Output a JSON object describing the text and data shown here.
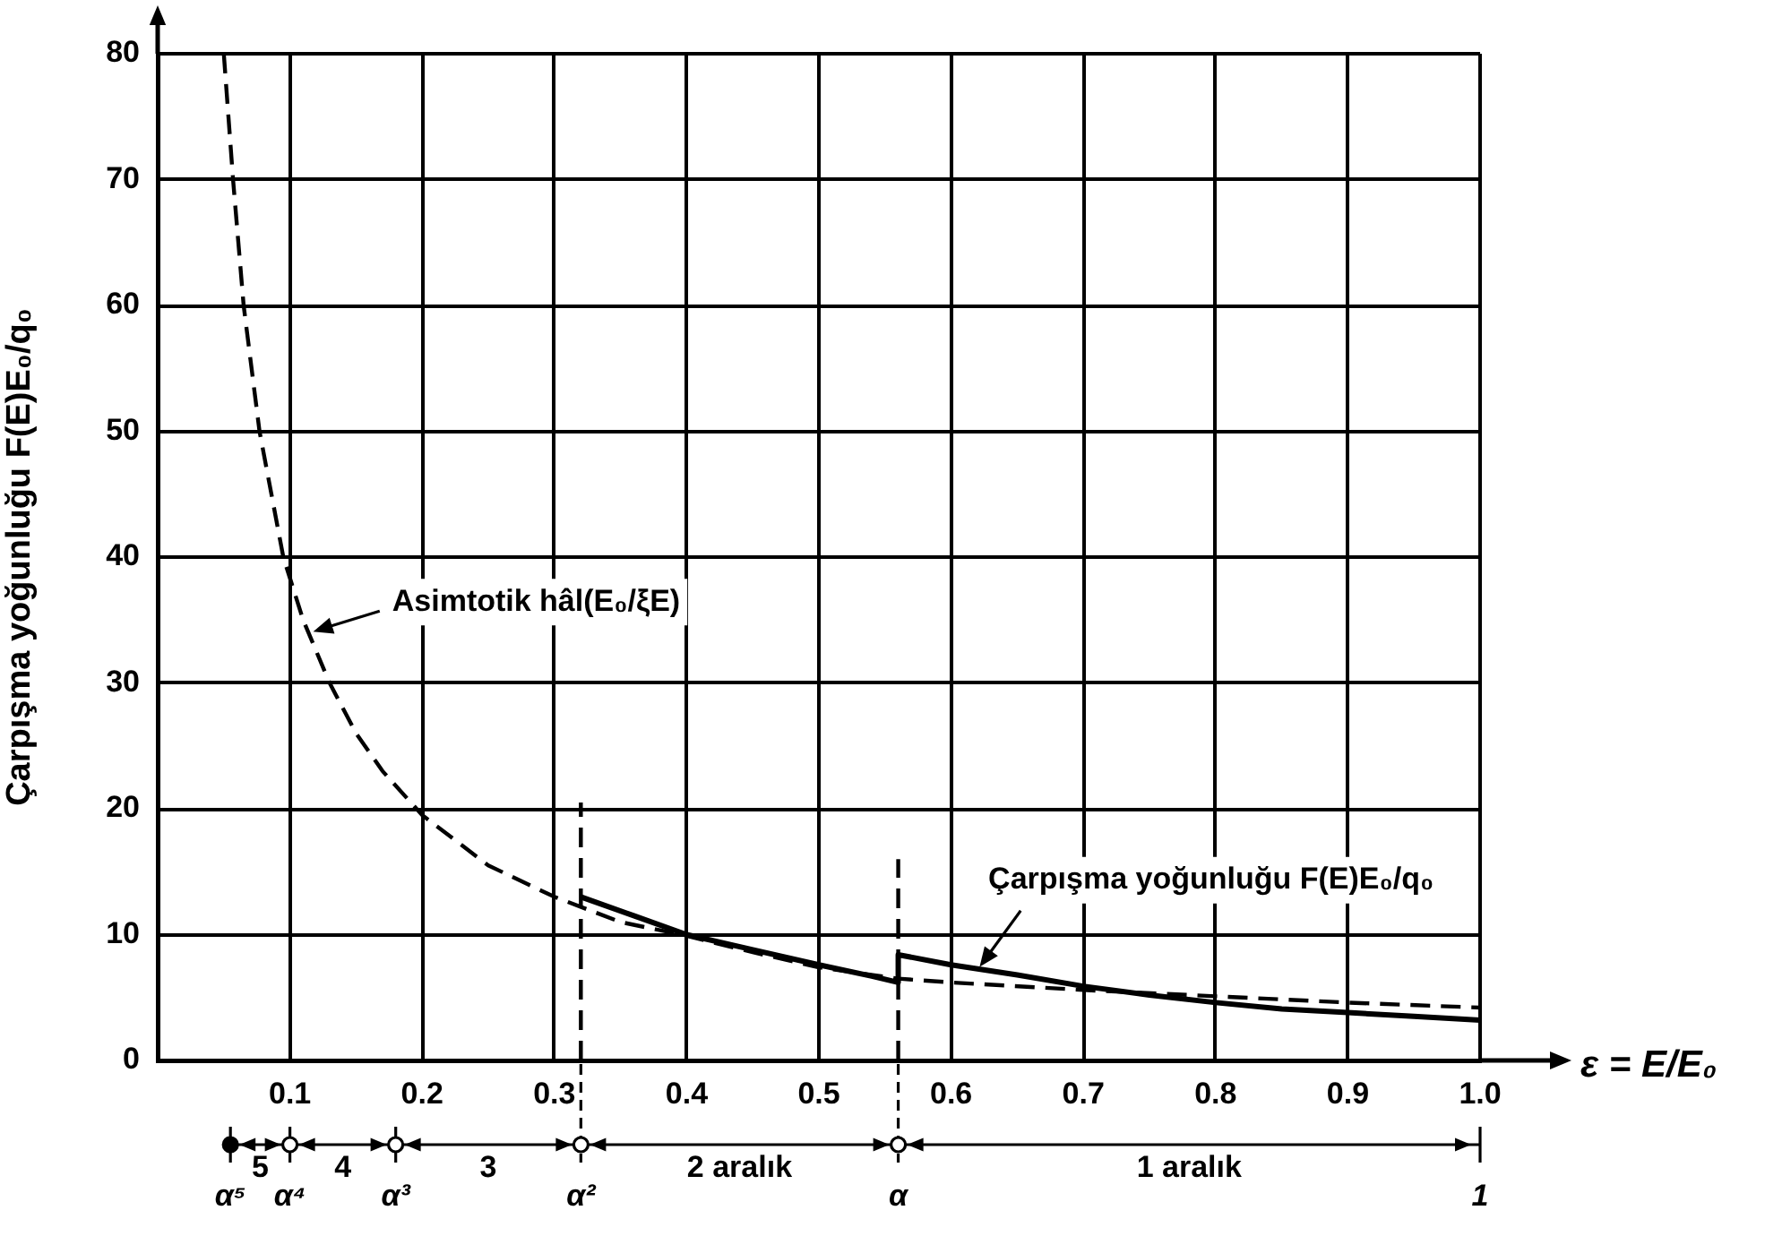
{
  "chart_data": {
    "type": "line",
    "xlabel": "ε = E/E₀",
    "ylabel": "Çarpışma yoğunluğu F(E)E₀/q₀",
    "xlim": [
      0,
      1
    ],
    "xticks": [
      0.1,
      0.2,
      0.3,
      0.4,
      0.5,
      0.6,
      0.7,
      0.8,
      0.9,
      {
        "value": 1,
        "label": "1.0"
      }
    ],
    "ylim": [
      0,
      80
    ],
    "yticks": [
      0,
      10,
      20,
      30,
      40,
      50,
      60,
      70,
      80
    ],
    "grid": true,
    "marker": "none",
    "series": [
      {
        "color": "#000000",
        "line_style": "dashed",
        "x": [
          0.05,
          0.057,
          0.065,
          0.077,
          0.095,
          0.11,
          0.13,
          0.15,
          0.17,
          0.2,
          0.25,
          0.3,
          0.35,
          0.4,
          0.45,
          0.5,
          0.56,
          0.6,
          0.7,
          0.8,
          0.9,
          1.0
        ],
        "values": [
          80,
          70,
          60,
          50,
          40,
          35,
          30,
          26,
          23,
          19.5,
          15.5,
          13,
          11,
          9.9,
          8.6,
          7.4,
          6.5,
          6.2,
          5.6,
          5.1,
          4.6,
          4.2
        ]
      },
      {
        "color": "#000000",
        "line_style": "solid",
        "x": [
          0.32,
          0.36,
          0.4,
          0.45,
          0.5,
          0.54,
          0.56,
          0.56,
          0.6,
          0.65,
          0.7,
          0.75,
          0.8,
          0.85,
          0.9,
          0.95,
          1.0
        ],
        "values": [
          13,
          11.5,
          10,
          8.8,
          7.6,
          6.7,
          6.2,
          8.4,
          7.6,
          6.8,
          5.9,
          5.2,
          4.6,
          4.1,
          3.8,
          3.5,
          3.2
        ]
      },
      {
        "color": "#000000",
        "line_style": "dashed",
        "x": [
          0.32,
          0.32
        ],
        "values": [
          0,
          20.5
        ]
      },
      {
        "color": "#000000",
        "line_style": "dashed",
        "x": [
          0.56,
          0.56
        ],
        "values": [
          0,
          16
        ]
      }
    ],
    "ref_lines": [
      {
        "axis": "x",
        "value": 0.055,
        "label": "α⁵"
      },
      {
        "axis": "x",
        "value": 0.1,
        "label": "α⁴"
      },
      {
        "axis": "x",
        "value": 0.18,
        "label": "α³"
      },
      {
        "axis": "x",
        "value": 0.32,
        "label": "α²",
        "line_style": "dashed"
      },
      {
        "axis": "x",
        "value": 0.56,
        "label": "α",
        "line_style": "dashed"
      },
      {
        "axis": "x",
        "value": 1,
        "label": "1"
      }
    ],
    "annotations": [
      {
        "text": "Asimtotik hâl(E₀/ξE)",
        "x": 0.115,
        "y": 34
      },
      {
        "text": "Çarpışma yoğunluğu F(E)E₀/q₀",
        "x": 0.62,
        "y": 7.2
      },
      "5",
      "4",
      "3",
      "2 aralık",
      "1 aralık"
    ]
  }
}
